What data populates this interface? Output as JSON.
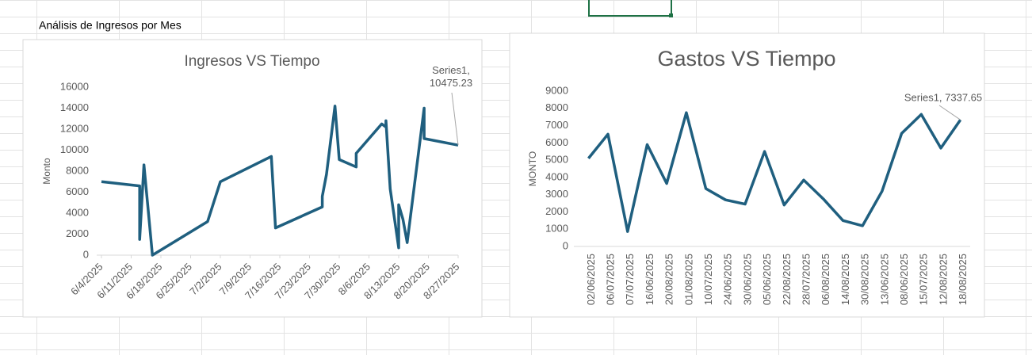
{
  "sheet": {
    "heading": "Análisis de Ingresos por Mes"
  },
  "chart_data": [
    {
      "type": "line",
      "title": "Ingresos VS Tiempo",
      "y_label": "Monto",
      "x": [
        "6/4/2025",
        "6/13/2025",
        "6/13/2025",
        "6/14/2025",
        "6/16/2025",
        "6/29/2025",
        "7/2/2025",
        "7/14/2025",
        "7/15/2025",
        "7/26/2025",
        "7/26/2025",
        "7/27/2025",
        "7/29/2025",
        "7/30/2025",
        "8/3/2025",
        "8/3/2025",
        "8/9/2025",
        "8/10/2025",
        "8/10/2025",
        "8/11/2025",
        "8/13/2025",
        "8/13/2025",
        "8/14/2025",
        "8/15/2025",
        "8/19/2025",
        "8/19/2025",
        "8/27/2025"
      ],
      "series": [
        {
          "name": "Series1",
          "color": "#1f5f7f",
          "values": [
            7000,
            6600,
            1500,
            8600,
            0,
            3200,
            7000,
            9400,
            2600,
            4600,
            5600,
            7700,
            14200,
            9100,
            8400,
            9700,
            12500,
            12200,
            12800,
            6300,
            700,
            4800,
            3400,
            1200,
            14000,
            11100,
            10475.23
          ],
          "value_labels": [
            null,
            null,
            null,
            null,
            null,
            null,
            null,
            null,
            null,
            null,
            null,
            null,
            null,
            null,
            null,
            null,
            null,
            null,
            null,
            null,
            null,
            null,
            null,
            null,
            null,
            null,
            "Series1, 10475.23"
          ]
        }
      ],
      "xlim": [
        "6/4/2025",
        "8/27/2025"
      ],
      "xticks": [
        "6/4/2025",
        "6/11/2025",
        "6/18/2025",
        "6/25/2025",
        "7/2/2025",
        "7/9/2025",
        "7/16/2025",
        "7/23/2025",
        "7/30/2025",
        "8/6/2025",
        "8/13/2025",
        "8/20/2025",
        "8/27/2025"
      ],
      "ylim": [
        0,
        16000
      ],
      "yticks": [
        0,
        2000,
        4000,
        6000,
        8000,
        10000,
        12000,
        14000,
        16000
      ],
      "grid": false
    },
    {
      "type": "line",
      "title": "Gastos VS Tiempo",
      "y_label": "MONTO",
      "categories": [
        "02/06/2025",
        "06/07/2025",
        "07/07/2025",
        "16/06/2025",
        "20/08/2025",
        "01/08/2025",
        "10/07/2025",
        "24/06/2025",
        "30/06/2025",
        "05/06/2025",
        "22/08/2025",
        "28/07/2025",
        "06/08/2025",
        "14/08/2025",
        "30/08/2025",
        "13/06/2025",
        "08/06/2025",
        "15/07/2025",
        "12/08/2025",
        "18/08/2025"
      ],
      "series": [
        {
          "name": "Series1",
          "color": "#1f5f7f",
          "values": [
            5100,
            6500,
            870,
            5900,
            3650,
            7750,
            3350,
            2700,
            2450,
            5500,
            2400,
            3850,
            2750,
            1500,
            1200,
            3200,
            6550,
            7650,
            5700,
            7337.65
          ],
          "value_labels": [
            null,
            null,
            null,
            null,
            null,
            null,
            null,
            null,
            null,
            null,
            null,
            null,
            null,
            null,
            null,
            null,
            null,
            null,
            null,
            "Series1, 7337.65"
          ]
        }
      ],
      "ylim": [
        0,
        9000
      ],
      "yticks": [
        0,
        1000,
        2000,
        3000,
        4000,
        5000,
        6000,
        7000,
        8000,
        9000
      ],
      "grid": false
    }
  ]
}
